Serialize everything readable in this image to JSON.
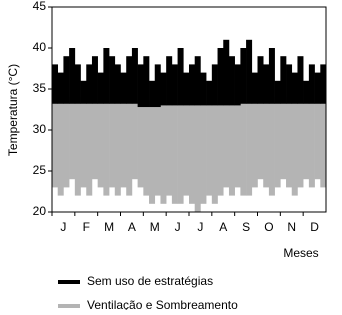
{
  "chart_data": {
    "type": "range",
    "y_label": "Temperatura (°C)",
    "x_label": "Meses",
    "months": [
      "J",
      "F",
      "M",
      "A",
      "M",
      "J",
      "J",
      "A",
      "S",
      "O",
      "N",
      "D"
    ],
    "ylim": [
      20,
      45
    ],
    "yticks": [
      20,
      25,
      30,
      35,
      40,
      45
    ],
    "series": [
      {
        "name": "Ventilação e Sombreamento",
        "color": "#b4b4b4",
        "low": [
          23,
          22,
          23,
          24,
          22,
          23,
          22,
          24,
          23,
          22,
          23,
          22,
          23,
          22,
          24,
          23,
          22,
          21,
          22,
          21,
          22,
          21,
          21,
          22,
          21,
          20,
          21,
          22,
          21,
          22,
          23,
          22,
          23,
          22,
          22,
          23,
          24,
          23,
          22,
          23,
          24,
          23,
          22,
          23,
          24,
          23,
          24,
          23
        ],
        "high": [
          34,
          34,
          34,
          34,
          34,
          33.5,
          34,
          34,
          34,
          34,
          34,
          34,
          34,
          34,
          34,
          33.5,
          33.5,
          33.5,
          33.5,
          33.5,
          33.5,
          33.5,
          33.5,
          33.5,
          33.5,
          33.5,
          33.5,
          33.5,
          33.5,
          33.5,
          33.5,
          33.5,
          33.5,
          33.5,
          33.5,
          34,
          34,
          34,
          34,
          34,
          34,
          34,
          34,
          34,
          34,
          34,
          34,
          34
        ]
      },
      {
        "name": "Sem uso de estratégias",
        "color": "#000000",
        "low": [
          33.2,
          33.2,
          33.2,
          33.2,
          33.2,
          33.2,
          33.2,
          33.2,
          33.2,
          33.2,
          33.2,
          33.2,
          33.2,
          33.2,
          33.2,
          32.8,
          32.8,
          32.8,
          32.8,
          33,
          33,
          33,
          33,
          33,
          33,
          33,
          33,
          33,
          33,
          33,
          33,
          33,
          33,
          33.2,
          33.2,
          33.2,
          33.2,
          33.2,
          33.2,
          33.2,
          33.2,
          33.2,
          33.2,
          33.2,
          33.2,
          33.2,
          33.2,
          33.2
        ],
        "high": [
          38,
          37,
          39,
          40,
          38,
          36,
          38,
          39,
          37,
          40,
          39,
          38,
          37,
          39,
          40,
          38,
          39,
          36,
          38,
          37,
          39,
          38,
          40,
          37,
          38,
          39,
          37,
          36,
          38,
          40,
          41,
          39,
          38,
          40,
          41,
          37,
          39,
          38,
          40,
          36,
          39,
          38,
          37,
          39,
          36,
          38,
          37,
          38
        ]
      }
    ]
  }
}
